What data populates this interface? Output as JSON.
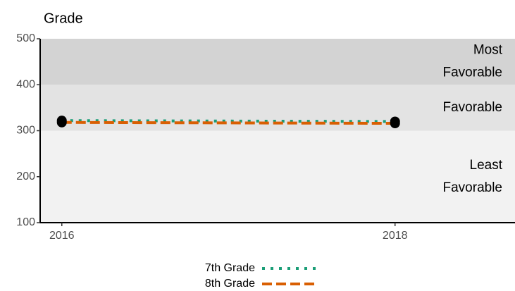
{
  "chart_data": {
    "type": "line",
    "y_label": "Grade",
    "x": [
      2016,
      2018
    ],
    "series": [
      {
        "name": "7th Grade",
        "color": "#1b9e77",
        "style": "dotted",
        "values": [
          322,
          320
        ]
      },
      {
        "name": "8th Grade",
        "color": "#d95f02",
        "style": "dashed",
        "values": [
          318,
          316
        ]
      }
    ],
    "bands": [
      {
        "label": [
          "Least",
          "Favorable"
        ],
        "from": 100,
        "to": 300,
        "color": "#f2f2f2"
      },
      {
        "label": [
          "Favorable"
        ],
        "from": 300,
        "to": 400,
        "color": "#e3e3e3"
      },
      {
        "label": [
          "Most",
          "Favorable"
        ],
        "from": 400,
        "to": 500,
        "color": "#d3d3d3"
      }
    ],
    "xlim": [
      2015.87,
      2018.72
    ],
    "xticks": [
      2016,
      2018
    ],
    "ylim": [
      100,
      500
    ],
    "yticks": [
      100,
      200,
      300,
      400,
      500
    ],
    "marker_color": "#000000"
  }
}
